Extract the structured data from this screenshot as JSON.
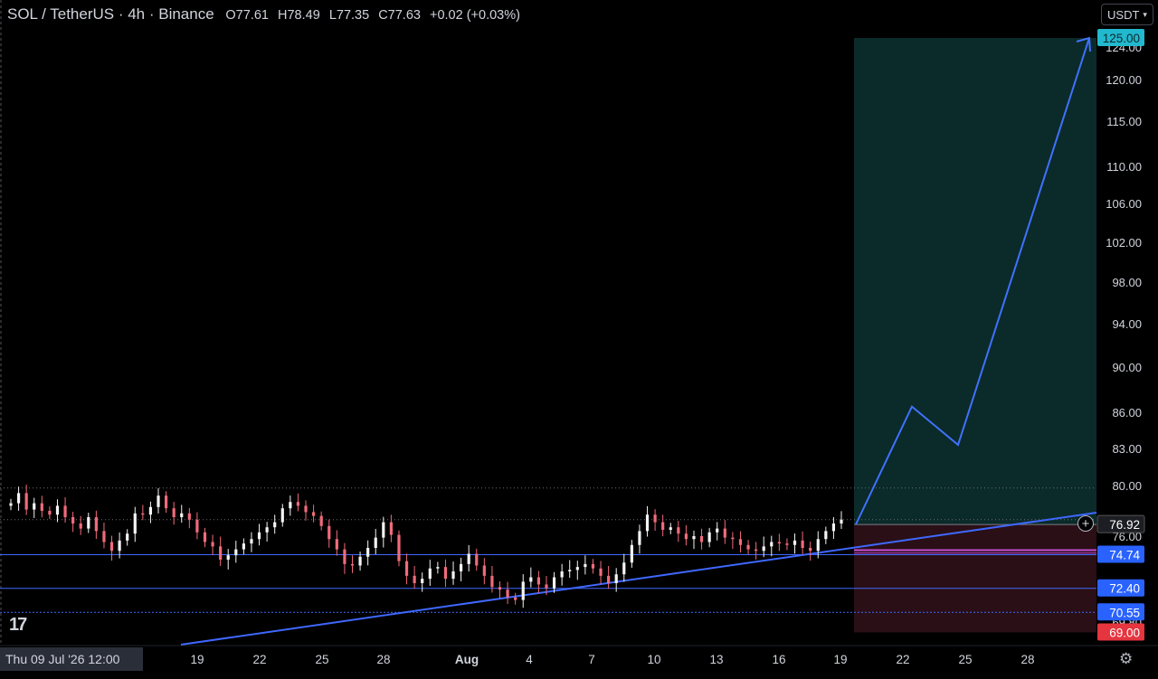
{
  "header": {
    "symbol": "SOL / TetherUS · 4h · Binance",
    "open": "O77.61",
    "high": "H78.49",
    "low": "L77.35",
    "close": "C77.63",
    "change": "+0.02 (+0.03%)"
  },
  "currency_button": {
    "label": "USDT",
    "chevron": "▾"
  },
  "crosshair_date": "Thu 09 Jul '26   12:00",
  "icons": {
    "logo": "tradingview-logo-icon",
    "settings": "gear-icon",
    "add": "plus-circle-icon"
  },
  "logo_text": "17",
  "colors": {
    "background": "#000000",
    "up_candle": "#f4f4f4",
    "down_candle": "#f06b7b",
    "line": "#3f68ff",
    "arrow": "#3f72ff",
    "target_zone": "#0b2a2a",
    "stop_zone": "#2a0f16",
    "label_blue": "#2962ff",
    "label_teal": "#22b8cf",
    "label_red": "#e5353f",
    "label_gray": "#1c1e23"
  },
  "chart_data": {
    "type": "candlestick",
    "y_ticks": [
      "124.00",
      "120.00",
      "115.00",
      "110.00",
      "106.00",
      "102.00",
      "98.00",
      "94.00",
      "90.00",
      "86.00",
      "83.00",
      "80.00",
      "76.00",
      "72.80",
      "69.80"
    ],
    "x_ticks": [
      "16",
      "19",
      "22",
      "25",
      "28",
      "Aug",
      "4",
      "7",
      "10",
      "13",
      "16",
      "19",
      "22",
      "25",
      "28"
    ],
    "price_labels": [
      {
        "text": "125.00",
        "value": 125.0,
        "color": "teal"
      },
      {
        "text": "76.92",
        "value": 76.92,
        "color": "gray"
      },
      {
        "text": "74.74",
        "value": 74.74,
        "color": "blue"
      },
      {
        "text": "72.40",
        "value": 72.4,
        "color": "blue"
      },
      {
        "text": "70.55",
        "value": 70.55,
        "color": "blue"
      },
      {
        "text": "69.00",
        "value": 69.0,
        "color": "red"
      }
    ],
    "horizontal_levels": [
      74.74,
      72.4,
      70.55
    ],
    "dotted_levels": [
      79.8,
      77.3
    ],
    "position": {
      "entry": 76.92,
      "target": 125.0,
      "stop": 69.0
    },
    "projection_path": [
      [
        76.92,
        0
      ],
      [
        86.5,
        1
      ],
      [
        83.3,
        2
      ],
      [
        125.0,
        3
      ]
    ],
    "candles_close_path": [
      78.6,
      79.4,
      78.1,
      78.6,
      78.0,
      77.7,
      78.4,
      77.5,
      77.0,
      76.6,
      77.5,
      76.4,
      75.6,
      75.0,
      75.7,
      76.2,
      77.8,
      77.7,
      78.3,
      79.2,
      78.2,
      77.5,
      77.8,
      77.3,
      76.3,
      75.6,
      75.3,
      74.4,
      74.7,
      75.1,
      75.5,
      75.8,
      76.3,
      76.7,
      77.1,
      78.2,
      78.7,
      78.4,
      77.9,
      77.6,
      76.8,
      75.8,
      75.1,
      74.1,
      74.0,
      74.6,
      75.2,
      75.9,
      77.1,
      76.1,
      74.3,
      73.3,
      72.8,
      73.1,
      73.8,
      73.9,
      73.1,
      73.6,
      74.1,
      74.8,
      74.0,
      73.3,
      72.5,
      72.3,
      71.7,
      71.5,
      72.9,
      73.2,
      72.7,
      72.4,
      73.2,
      73.6,
      73.7,
      73.9,
      74.1,
      73.8,
      73.3,
      72.8,
      73.4,
      74.2,
      75.4,
      76.4,
      77.7,
      77.1,
      76.5,
      76.7,
      76.2,
      75.8,
      76.0,
      75.6,
      76.3,
      76.6,
      75.9,
      75.8,
      75.4,
      75.1,
      75.0,
      75.3,
      75.6,
      75.5,
      75.4,
      75.7,
      75.2,
      75.0,
      75.8,
      76.4,
      77.0,
      77.3
    ]
  }
}
